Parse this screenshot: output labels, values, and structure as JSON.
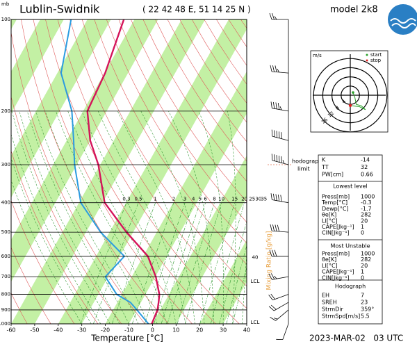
{
  "chart_data": {
    "type": "skewt",
    "title": "Lublin-Swidnik",
    "subtitle": "( 22 42 48 E, 51 14 25 N )",
    "model": "model 2k8",
    "date": "2023-MAR-02   03 UTC",
    "xlabel": "Temperature [°C]",
    "ylabel": "mb",
    "xlim": [
      -60,
      40
    ],
    "xticks": [
      -60,
      -50,
      -40,
      -30,
      -20,
      -10,
      0,
      10,
      20,
      30,
      40
    ],
    "ylim": [
      1000,
      100
    ],
    "yticks": [
      1000,
      900,
      800,
      700,
      600,
      500,
      400,
      300,
      200,
      100
    ],
    "log_y": true,
    "pressure": [
      1000,
      900,
      850,
      800,
      700,
      600,
      500,
      400,
      300,
      250,
      200,
      150,
      100
    ],
    "series": [
      {
        "color": "#d4145a",
        "values": [
          -0.3,
          -1.2,
          -2.5,
          -4.1,
          -9.8,
          -18.0,
          -32.8,
          -49.1,
          -60.8,
          -70.0,
          -78.2,
          -79.7,
          -84.5
        ]
      },
      {
        "color": "#2b9be0",
        "values": [
          -1.7,
          -9.9,
          -14.5,
          -22.2,
          -31.2,
          -28.0,
          -43.8,
          -59.2,
          -70.9,
          -77.0,
          -84.8,
          -98.4,
          -106.9
        ]
      }
    ],
    "wind_speed": [
      10,
      15,
      20,
      20,
      25,
      30,
      40,
      50,
      55,
      50,
      45,
      35,
      25
    ],
    "wind_direction": [
      200,
      230,
      240,
      250,
      260,
      270,
      275,
      280,
      285,
      285,
      280,
      275,
      270
    ],
    "mixing_ratio_label": "Mixing Ratio [g/kg]",
    "mixing_ratios": [
      0.3,
      0.5,
      1,
      2,
      3,
      4,
      5,
      6,
      8,
      10,
      15,
      20,
      25,
      30,
      35
    ],
    "annotations": [
      {
        "text": "40",
        "pressure": 605
      },
      {
        "text": "LCL",
        "pressure": 725
      },
      {
        "text": "LCL",
        "pressure": 990
      }
    ],
    "hodograph_limit": [
      "hodograph",
      "limit"
    ],
    "hodograph": {
      "unit": "m/s",
      "rings": [
        4,
        8,
        12,
        16
      ],
      "legend": [
        "start",
        "stop"
      ],
      "u": [
        1.2,
        2,
        2.6,
        4.8,
        6.6,
        4,
        0
      ],
      "v": [
        1.2,
        -1,
        -4,
        -4.6,
        -6.3,
        -5,
        -4.5
      ]
    }
  },
  "indices": {
    "general": [
      [
        "K",
        -14
      ],
      [
        "TT",
        32
      ],
      [
        "PW[cm]",
        0.66
      ]
    ],
    "lowest": {
      "title": "Lowest level",
      "rows": [
        [
          "Press[mb]",
          1000
        ],
        [
          "Temp[°C]",
          -0.3
        ],
        [
          "Dewp[°C]",
          -1.7
        ],
        [
          "θe[K]",
          282
        ],
        [
          "LI[°C]",
          20
        ],
        [
          "CAPE[Jkg⁻¹]",
          1
        ],
        [
          "CIN[Jkg⁻¹]",
          0
        ]
      ]
    },
    "unstable": {
      "title": "Most Unstable",
      "rows": [
        [
          "Press[mb]",
          1000
        ],
        [
          "θe[K]",
          282
        ],
        [
          "LI[°C]",
          20
        ],
        [
          "CAPE[Jkg⁻¹]",
          1
        ],
        [
          "CIN[Jkg⁻¹]",
          0
        ]
      ]
    },
    "hodo": {
      "title": "Hodograph",
      "rows": [
        [
          "EH",
          7
        ],
        [
          "SREH",
          23
        ],
        [
          "StrmDir",
          "359°"
        ],
        [
          "StrmSpd[m/s]",
          5.5
        ]
      ]
    }
  }
}
